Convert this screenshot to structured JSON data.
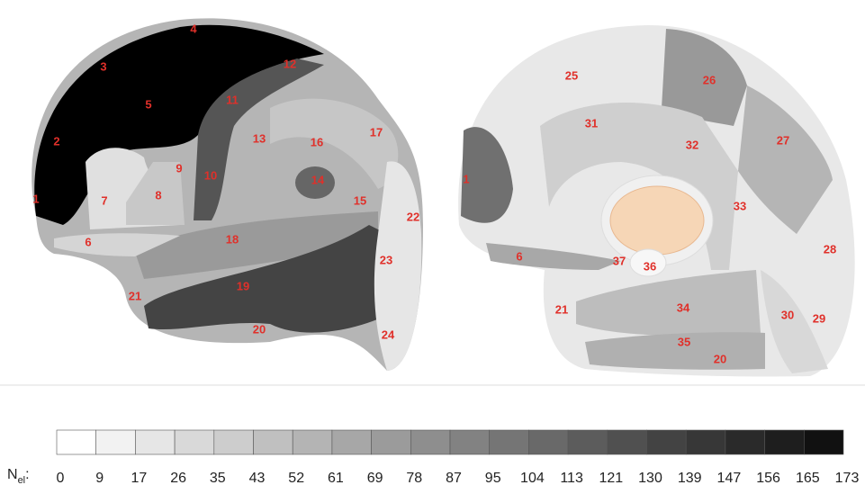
{
  "lateral_view": {
    "labels": [
      "1",
      "2",
      "3",
      "4",
      "5",
      "6",
      "7",
      "8",
      "9",
      "10",
      "11",
      "12",
      "13",
      "14",
      "15",
      "16",
      "17",
      "18",
      "19",
      "20",
      "21",
      "22",
      "23",
      "24"
    ]
  },
  "medial_view": {
    "labels": [
      "25",
      "26",
      "31",
      "32",
      "27",
      "1",
      "33",
      "28",
      "6",
      "37",
      "36",
      "21",
      "34",
      "30",
      "29",
      "35",
      "20"
    ]
  },
  "colorbar": {
    "label": {
      "main": "N",
      "sub": "el",
      "suffix": ":"
    },
    "ticks": [
      0,
      9,
      17,
      26,
      35,
      43,
      52,
      61,
      69,
      78,
      87,
      95,
      104,
      113,
      121,
      130,
      139,
      147,
      156,
      165,
      173
    ]
  }
}
